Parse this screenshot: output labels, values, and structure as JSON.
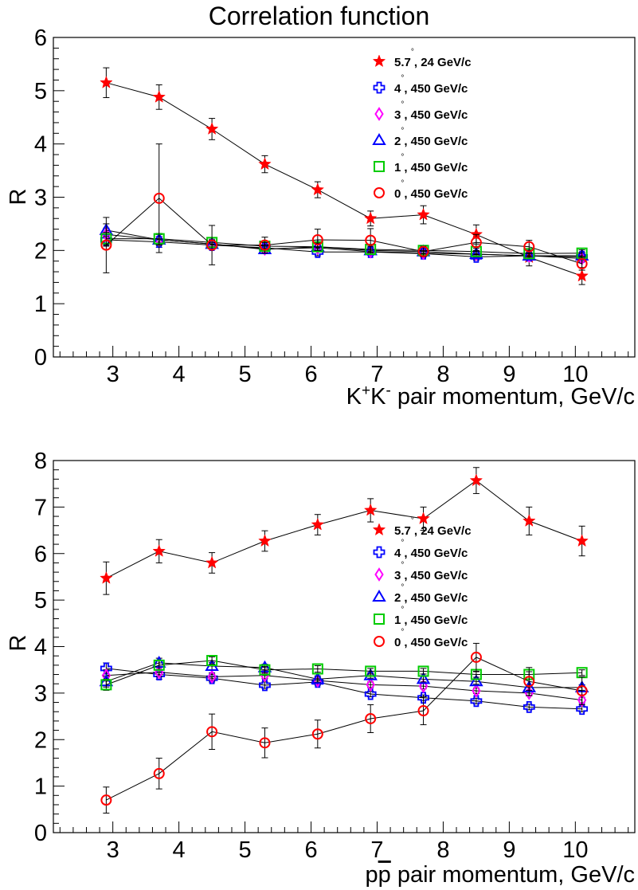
{
  "page_title": "Correlation function",
  "chart_data": [
    {
      "type": "line",
      "title": "Correlation function",
      "xlabel": "K<sup>+</sup>K<sup>-</sup> pair momentum, GeV/c",
      "xlabel_parts": [
        "K",
        "+",
        "K",
        "-",
        " pair momentum, GeV/c"
      ],
      "ylabel": "R",
      "xlim": [
        2.1,
        10.9
      ],
      "ylim": [
        0,
        6
      ],
      "xticks": [
        3,
        4,
        5,
        6,
        7,
        8,
        9,
        10
      ],
      "yticks": [
        0,
        1,
        2,
        3,
        4,
        5,
        6
      ],
      "legend_position": "top-right",
      "x": [
        2.9,
        3.7,
        4.5,
        5.3,
        6.1,
        6.9,
        7.7,
        8.5,
        9.3,
        10.1
      ],
      "series": [
        {
          "name": "5.7°, 24 GeV/c",
          "label_main": "5.7",
          "label_rest": ", 24 GeV/c",
          "marker": "star",
          "color": "#ff0000",
          "values": [
            5.15,
            4.88,
            4.28,
            3.62,
            3.14,
            2.6,
            2.67,
            2.3,
            1.87,
            1.52
          ],
          "errors": [
            0.28,
            0.23,
            0.2,
            0.16,
            0.15,
            0.14,
            0.17,
            0.18,
            0.16,
            0.16
          ]
        },
        {
          "name": "4°, 450 GeV/c",
          "label_main": "4",
          "label_rest": ", 450 GeV/c",
          "marker": "cross",
          "color": "#0000ff",
          "values": [
            2.2,
            2.16,
            2.1,
            2.05,
            1.97,
            1.97,
            1.94,
            1.88,
            1.9,
            1.88
          ],
          "errors": [
            0.12,
            0.1,
            0.08,
            0.07,
            0.07,
            0.06,
            0.06,
            0.06,
            0.06,
            0.06
          ]
        },
        {
          "name": "3°, 450 GeV/c",
          "label_main": "3",
          "label_rest": ", 450 GeV/c",
          "marker": "diamond",
          "color": "#ff00ff",
          "values": [
            2.3,
            2.2,
            2.12,
            2.03,
            2.05,
            1.98,
            1.95,
            1.93,
            1.9,
            1.85
          ],
          "errors": [
            0.12,
            0.1,
            0.08,
            0.07,
            0.07,
            0.06,
            0.06,
            0.06,
            0.06,
            0.06
          ]
        },
        {
          "name": "2°, 450 GeV/c",
          "label_main": "2",
          "label_rest": ", 450 GeV/c",
          "marker": "triangle",
          "color": "#0000ff",
          "values": [
            2.38,
            2.2,
            2.12,
            2.02,
            2.07,
            2.0,
            1.98,
            1.93,
            1.9,
            1.9
          ],
          "errors": [
            0.12,
            0.1,
            0.08,
            0.07,
            0.07,
            0.06,
            0.06,
            0.06,
            0.06,
            0.06
          ]
        },
        {
          "name": "1°, 450 GeV/c",
          "label_main": "1",
          "label_rest": ", 450 GeV/c",
          "marker": "square",
          "color": "#00cc00",
          "values": [
            2.22,
            2.22,
            2.15,
            2.08,
            2.07,
            2.02,
            2.0,
            1.98,
            1.94,
            1.95
          ],
          "errors": [
            0.12,
            0.1,
            0.08,
            0.07,
            0.07,
            0.06,
            0.06,
            0.06,
            0.06,
            0.06
          ]
        },
        {
          "name": "0°, 450 GeV/c",
          "label_main": "0",
          "label_rest": ", 450 GeV/c",
          "marker": "circle",
          "color": "#ff0000",
          "values": [
            2.1,
            2.98,
            2.1,
            2.1,
            2.2,
            2.19,
            1.98,
            2.15,
            2.07,
            1.75
          ],
          "errors": [
            0.52,
            1.02,
            0.37,
            0.15,
            0.2,
            0.22,
            0.1,
            0.15,
            0.12,
            0.12
          ]
        }
      ]
    },
    {
      "type": "line",
      "title": "",
      "xlabel": "pp̄ pair momentum, GeV/c",
      "xlabel_parts": [
        "p",
        "p",
        "  pair momentum, GeV/c"
      ],
      "ylabel": "R",
      "xlim": [
        2.1,
        10.9
      ],
      "ylim": [
        0,
        8
      ],
      "xticks": [
        3,
        4,
        5,
        6,
        7,
        8,
        9,
        10
      ],
      "yticks": [
        0,
        1,
        2,
        3,
        4,
        5,
        6,
        7,
        8
      ],
      "legend_position": "right",
      "x": [
        2.9,
        3.7,
        4.5,
        5.3,
        6.1,
        6.9,
        7.7,
        8.5,
        9.3,
        10.1
      ],
      "series": [
        {
          "name": "5.7°, 24 GeV/c",
          "label_main": "5.7",
          "label_rest": ", 24 GeV/c",
          "marker": "star",
          "color": "#ff0000",
          "values": [
            5.47,
            6.05,
            5.8,
            6.27,
            6.62,
            6.93,
            6.75,
            7.57,
            6.7,
            6.27
          ],
          "errors": [
            0.35,
            0.25,
            0.22,
            0.22,
            0.22,
            0.25,
            0.25,
            0.28,
            0.3,
            0.32
          ]
        },
        {
          "name": "4°, 450 GeV/c",
          "label_main": "4",
          "label_rest": ", 450 GeV/c",
          "marker": "cross",
          "color": "#0000ff",
          "values": [
            3.53,
            3.4,
            3.32,
            3.17,
            3.24,
            2.98,
            2.9,
            2.83,
            2.7,
            2.66
          ],
          "errors": [
            0.12,
            0.1,
            0.08,
            0.07,
            0.07,
            0.06,
            0.06,
            0.06,
            0.06,
            0.06
          ]
        },
        {
          "name": "3°, 450 GeV/c",
          "label_main": "3",
          "label_rest": ", 450 GeV/c",
          "marker": "diamond",
          "color": "#ff00ff",
          "values": [
            3.38,
            3.45,
            3.35,
            3.38,
            3.27,
            3.18,
            3.15,
            3.05,
            3.0,
            2.85
          ],
          "errors": [
            0.12,
            0.1,
            0.08,
            0.07,
            0.07,
            0.06,
            0.06,
            0.06,
            0.06,
            0.06
          ]
        },
        {
          "name": "2°, 450 GeV/c",
          "label_main": "2",
          "label_rest": ", 450 GeV/c",
          "marker": "triangle",
          "color": "#0000ff",
          "values": [
            3.25,
            3.65,
            3.58,
            3.55,
            3.3,
            3.38,
            3.3,
            3.25,
            3.12,
            3.12
          ],
          "errors": [
            0.12,
            0.1,
            0.08,
            0.07,
            0.07,
            0.06,
            0.06,
            0.06,
            0.06,
            0.06
          ]
        },
        {
          "name": "1°, 450 GeV/c",
          "label_main": "1",
          "label_rest": ", 450 GeV/c",
          "marker": "square",
          "color": "#00cc00",
          "values": [
            3.18,
            3.6,
            3.7,
            3.5,
            3.52,
            3.47,
            3.47,
            3.4,
            3.4,
            3.44
          ],
          "errors": [
            0.12,
            0.1,
            0.08,
            0.07,
            0.07,
            0.06,
            0.06,
            0.06,
            0.06,
            0.06
          ]
        },
        {
          "name": "0°, 450 GeV/c",
          "label_main": "0",
          "label_rest": ", 450 GeV/c",
          "marker": "circle",
          "color": "#ff0000",
          "values": [
            0.7,
            1.27,
            2.17,
            1.93,
            2.12,
            2.45,
            2.62,
            3.77,
            3.25,
            3.05
          ],
          "errors": [
            0.28,
            0.33,
            0.38,
            0.32,
            0.3,
            0.3,
            0.3,
            0.3,
            0.3,
            0.3
          ]
        }
      ]
    }
  ]
}
